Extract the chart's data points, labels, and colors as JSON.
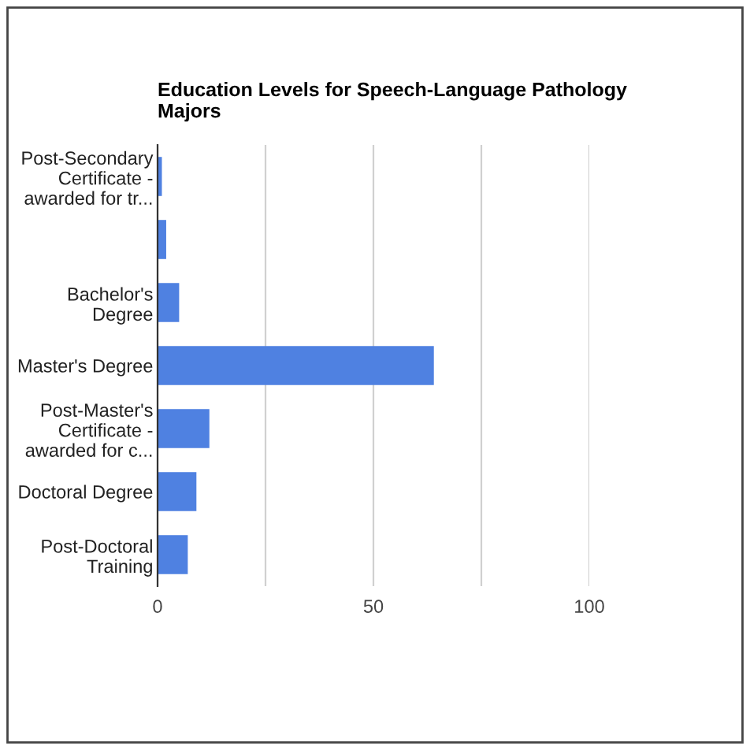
{
  "chart_data": {
    "type": "bar",
    "orientation": "horizontal",
    "title": "Education Levels for Speech-Language Pathology\nMajors",
    "categories": [
      "Post-Secondary\nCertificate -\nawarded for tr...",
      null,
      "Bachelor's\nDegree",
      "Master's Degree",
      "Post-Master's\nCertificate -\nawarded for c...",
      "Doctoral Degree",
      "Post-Doctoral\nTraining"
    ],
    "values": [
      1,
      2,
      5,
      64,
      12,
      9,
      7
    ],
    "color": "#4f81e1",
    "xlim": [
      0,
      100
    ],
    "xticks": [
      0,
      {
        "value": 25,
        "label": null
      },
      50,
      {
        "value": 75,
        "label": null
      },
      100
    ],
    "grid": "x"
  }
}
